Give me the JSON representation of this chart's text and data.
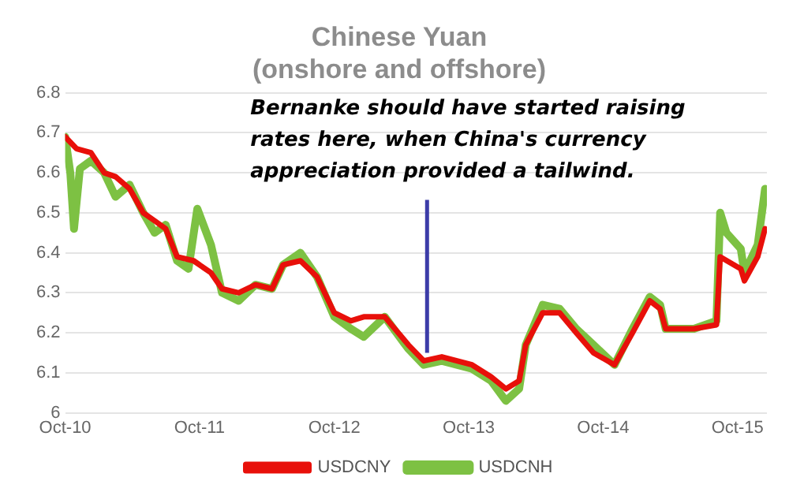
{
  "chart_data": {
    "type": "line",
    "title": "Chinese Yuan\n(onshore and offshore)",
    "xlim": [
      "2010-10-01",
      "2015-12-20"
    ],
    "xticks": [
      {
        "value": "2010-10-01",
        "label": "Oct-10"
      },
      {
        "value": "2011-10-01",
        "label": "Oct-11"
      },
      {
        "value": "2012-10-01",
        "label": "Oct-12"
      },
      {
        "value": "2013-10-01",
        "label": "Oct-13"
      },
      {
        "value": "2014-10-01",
        "label": "Oct-14"
      },
      {
        "value": "2015-10-01",
        "label": "Oct-15"
      }
    ],
    "ylim": [
      6,
      6.8
    ],
    "yticks": [
      6,
      6.1,
      6.2,
      6.3,
      6.4,
      6.5,
      6.6,
      6.7,
      6.8
    ],
    "grid": "y",
    "legend": "bottom",
    "marker": "none",
    "line_style": "solid",
    "annotations": [
      {
        "text": "Bernanke should have started raising rates here, when China's currency appreciation provided a tailwind.",
        "x": "2013-06-10",
        "y": 6.15
      }
    ],
    "series": [
      {
        "name": "USDCNH",
        "color": "#7dc143",
        "x": [
          "2010-10-01",
          "2010-10-15",
          "2010-10-25",
          "2010-11-10",
          "2010-12-10",
          "2011-01-15",
          "2011-02-15",
          "2011-03-25",
          "2011-05-01",
          "2011-06-01",
          "2011-07-01",
          "2011-08-01",
          "2011-09-01",
          "2011-09-25",
          "2011-11-01",
          "2011-12-01",
          "2012-01-15",
          "2012-03-01",
          "2012-04-15",
          "2012-05-15",
          "2012-07-01",
          "2012-08-15",
          "2012-10-01",
          "2012-11-15",
          "2012-12-20",
          "2013-02-15",
          "2013-04-20",
          "2013-06-01",
          "2013-07-20",
          "2013-10-10",
          "2013-12-01",
          "2014-01-10",
          "2014-02-15",
          "2014-03-05",
          "2014-04-20",
          "2014-06-05",
          "2014-07-20",
          "2014-09-05",
          "2014-11-01",
          "2014-12-20",
          "2015-02-05",
          "2015-03-05",
          "2015-03-20",
          "2015-06-05",
          "2015-08-05",
          "2015-08-15",
          "2015-09-01",
          "2015-10-10",
          "2015-10-20",
          "2015-11-25",
          "2015-12-15"
        ],
        "values": [
          6.69,
          6.6,
          6.46,
          6.61,
          6.63,
          6.6,
          6.54,
          6.57,
          6.5,
          6.45,
          6.47,
          6.38,
          6.36,
          6.51,
          6.42,
          6.3,
          6.28,
          6.32,
          6.31,
          6.37,
          6.4,
          6.34,
          6.24,
          6.21,
          6.19,
          6.24,
          6.16,
          6.12,
          6.13,
          6.11,
          6.08,
          6.03,
          6.06,
          6.17,
          6.27,
          6.26,
          6.21,
          6.17,
          6.12,
          6.21,
          6.29,
          6.27,
          6.21,
          6.21,
          6.23,
          6.5,
          6.45,
          6.41,
          6.35,
          6.42,
          6.56
        ]
      },
      {
        "name": "USDCNY",
        "color": "#e8100a",
        "x": [
          "2010-10-01",
          "2010-11-01",
          "2010-12-10",
          "2011-01-15",
          "2011-02-15",
          "2011-03-25",
          "2011-05-01",
          "2011-06-01",
          "2011-07-01",
          "2011-08-01",
          "2011-09-15",
          "2011-11-01",
          "2011-12-01",
          "2012-01-15",
          "2012-03-01",
          "2012-04-15",
          "2012-05-15",
          "2012-07-01",
          "2012-08-15",
          "2012-10-01",
          "2012-11-15",
          "2012-12-20",
          "2013-02-15",
          "2013-04-20",
          "2013-06-01",
          "2013-07-20",
          "2013-10-10",
          "2013-12-01",
          "2014-01-10",
          "2014-02-15",
          "2014-03-05",
          "2014-04-20",
          "2014-06-05",
          "2014-07-20",
          "2014-09-05",
          "2014-11-01",
          "2014-12-20",
          "2015-02-05",
          "2015-03-05",
          "2015-03-20",
          "2015-06-05",
          "2015-08-05",
          "2015-08-15",
          "2015-10-10",
          "2015-10-20",
          "2015-11-25",
          "2015-12-15"
        ],
        "values": [
          6.69,
          6.66,
          6.65,
          6.6,
          6.59,
          6.56,
          6.5,
          6.48,
          6.46,
          6.39,
          6.38,
          6.35,
          6.31,
          6.3,
          6.32,
          6.31,
          6.37,
          6.38,
          6.34,
          6.25,
          6.23,
          6.24,
          6.24,
          6.17,
          6.13,
          6.14,
          6.12,
          6.09,
          6.06,
          6.08,
          6.17,
          6.25,
          6.25,
          6.2,
          6.15,
          6.12,
          6.2,
          6.28,
          6.26,
          6.21,
          6.21,
          6.22,
          6.39,
          6.36,
          6.33,
          6.39,
          6.46
        ]
      }
    ]
  }
}
